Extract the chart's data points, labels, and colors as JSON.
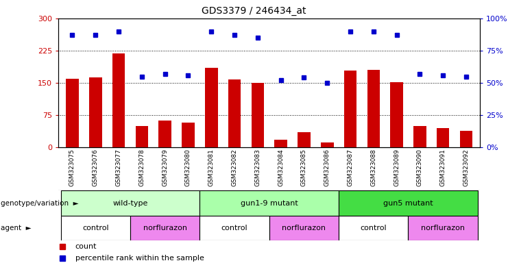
{
  "title": "GDS3379 / 246434_at",
  "samples": [
    "GSM323075",
    "GSM323076",
    "GSM323077",
    "GSM323078",
    "GSM323079",
    "GSM323080",
    "GSM323081",
    "GSM323082",
    "GSM323083",
    "GSM323084",
    "GSM323085",
    "GSM323086",
    "GSM323087",
    "GSM323088",
    "GSM323089",
    "GSM323090",
    "GSM323091",
    "GSM323092"
  ],
  "counts": [
    160,
    162,
    218,
    50,
    62,
    57,
    185,
    158,
    150,
    18,
    35,
    12,
    178,
    180,
    152,
    50,
    45,
    38
  ],
  "percentiles": [
    87,
    87,
    90,
    55,
    57,
    56,
    90,
    87,
    85,
    52,
    54,
    50,
    90,
    90,
    87,
    57,
    56,
    55
  ],
  "bar_color": "#cc0000",
  "dot_color": "#0000cc",
  "ylim_left": [
    0,
    300
  ],
  "ylim_right": [
    0,
    100
  ],
  "yticks_left": [
    0,
    75,
    150,
    225,
    300
  ],
  "ytick_labels_left": [
    "0",
    "75",
    "150",
    "225",
    "300"
  ],
  "yticks_right": [
    0,
    25,
    50,
    75,
    100
  ],
  "ytick_labels_right": [
    "0%",
    "25%",
    "50%",
    "75%",
    "100%"
  ],
  "hlines": [
    75,
    150,
    225
  ],
  "genotype_groups": [
    {
      "label": "wild-type",
      "start": 0,
      "end": 6,
      "color": "#ccffcc"
    },
    {
      "label": "gun1-9 mutant",
      "start": 6,
      "end": 12,
      "color": "#aaffaa"
    },
    {
      "label": "gun5 mutant",
      "start": 12,
      "end": 18,
      "color": "#44dd44"
    }
  ],
  "agent_groups": [
    {
      "label": "control",
      "start": 0,
      "end": 3,
      "color": "#ffffff"
    },
    {
      "label": "norflurazon",
      "start": 3,
      "end": 6,
      "color": "#ee88ee"
    },
    {
      "label": "control",
      "start": 6,
      "end": 9,
      "color": "#ffffff"
    },
    {
      "label": "norflurazon",
      "start": 9,
      "end": 12,
      "color": "#ee88ee"
    },
    {
      "label": "control",
      "start": 12,
      "end": 15,
      "color": "#ffffff"
    },
    {
      "label": "norflurazon",
      "start": 15,
      "end": 18,
      "color": "#ee88ee"
    }
  ],
  "legend_count_label": "count",
  "legend_pct_label": "percentile rank within the sample",
  "genotype_label": "genotype/variation",
  "agent_label": "agent",
  "xtick_bg": "#dddddd",
  "plot_bg": "#ffffff",
  "axis_label_color_left": "#cc0000",
  "axis_label_color_right": "#0000cc"
}
